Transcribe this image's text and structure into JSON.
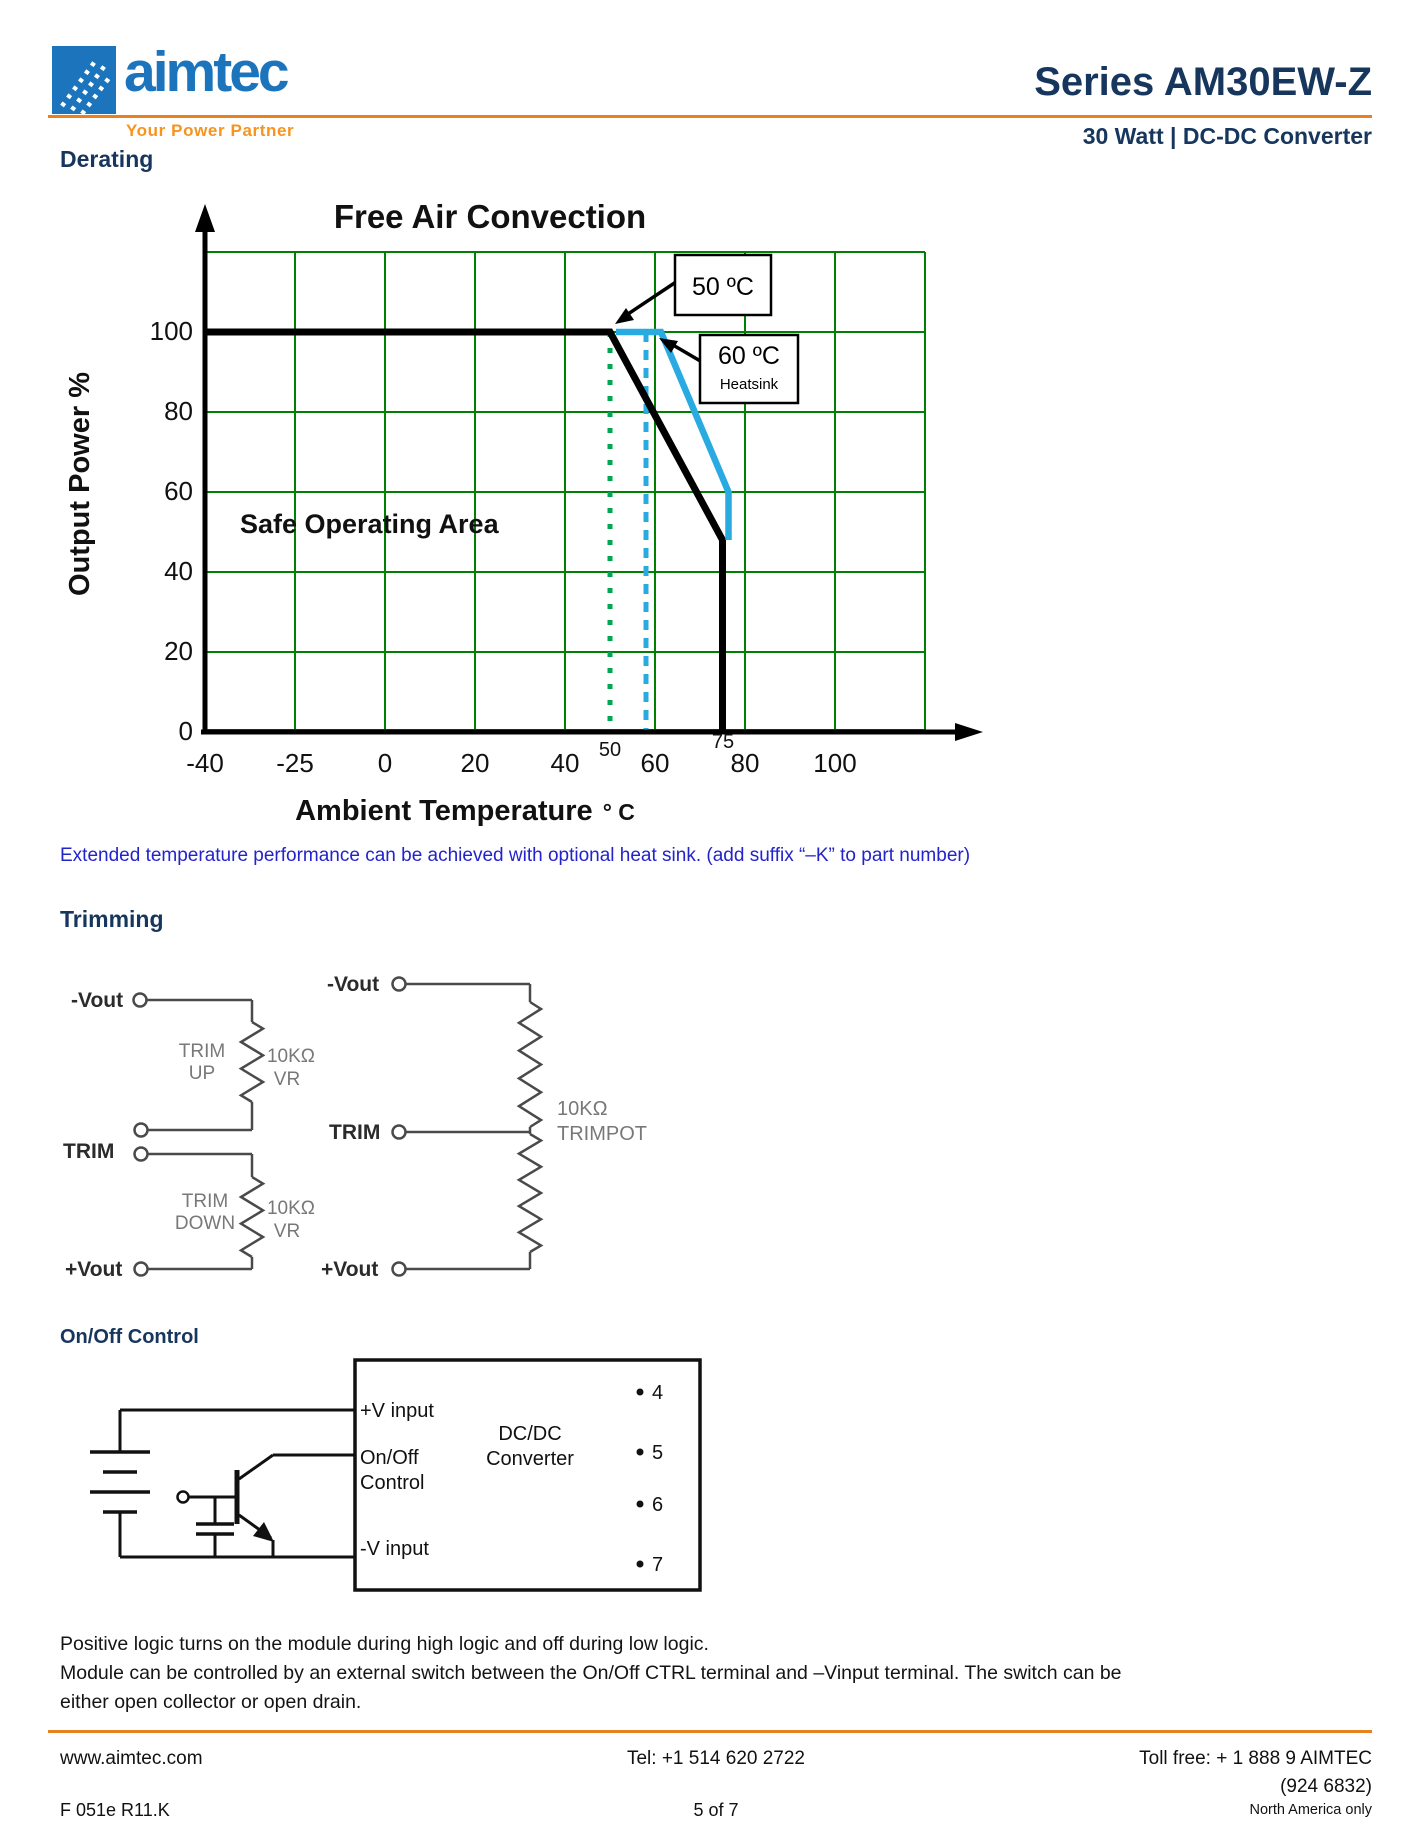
{
  "header": {
    "logo_text": "aimtec",
    "logo_tagline": "Your Power Partner",
    "series_title": "Series AM30EW-Z",
    "series_subtitle": "30 Watt | DC-DC Converter"
  },
  "derating": {
    "heading": "Derating",
    "note": "Extended temperature performance can be achieved with optional heat sink. (add suffix “–K” to part number)"
  },
  "chart_data": {
    "type": "line",
    "title": "Free Air Convection",
    "xlabel": "Ambient Temperature",
    "xlabel_unit": "° C",
    "ylabel": "Output Power %",
    "x_ticks": [
      "-40",
      "-25",
      "0",
      "20",
      "40",
      "60",
      "80",
      "100"
    ],
    "x_minor_ticks": [
      "50",
      "75"
    ],
    "y_ticks": [
      "100",
      "80",
      "60",
      "40",
      "20",
      "0"
    ],
    "ylim": [
      0,
      120
    ],
    "grid": true,
    "grid_color": "#008000",
    "legend_position": "none",
    "annotations": {
      "safe_area": "Safe Operating Area",
      "callout_50": "50 ºC",
      "callout_60": "60 ºC",
      "callout_60_sub": "Heatsink"
    },
    "series": [
      {
        "name": "free_air_convection",
        "color": "#000000",
        "points": [
          [
            -40,
            100
          ],
          [
            50,
            100
          ],
          [
            75,
            48
          ],
          [
            75,
            0
          ]
        ]
      },
      {
        "name": "with_60C_heatsink",
        "color": "#29ABE2",
        "points": [
          [
            50,
            100
          ],
          [
            60,
            100
          ],
          [
            75,
            60
          ],
          [
            75,
            48
          ]
        ]
      }
    ],
    "reference_lines": [
      {
        "x": 50,
        "style": "dotted",
        "color": "#00A651"
      },
      {
        "x": 58,
        "style": "dashed",
        "color": "#29ABE2"
      }
    ]
  },
  "trimming": {
    "heading": "Trimming",
    "dual_vr": {
      "neg_vout": "-Vout",
      "trim_up_l1": "TRIM",
      "trim_up_l2": "UP",
      "r1_value": "10KΩ",
      "r1_sub": "VR",
      "trim": "TRIM",
      "trim_down_l1": "TRIM",
      "trim_down_l2": "DOWN",
      "r2_value": "10KΩ",
      "r2_sub": "VR",
      "pos_vout": "+Vout"
    },
    "trimpot": {
      "neg_vout": "-Vout",
      "trim": "TRIM",
      "pos_vout": "+Vout",
      "value": "10KΩ",
      "value_sub": "TRIMPOT"
    }
  },
  "onoff": {
    "heading": "On/Off Control",
    "labels": {
      "pos_v": "+V input",
      "onoff_l1": "On/Off",
      "onoff_l2": "Control",
      "neg_v": "-V input",
      "box_l1": "DC/DC",
      "box_l2": "Converter"
    },
    "pins": [
      "4",
      "5",
      "6",
      "7"
    ]
  },
  "body": {
    "p1": "Positive logic turns on the module during high logic and off during low logic.",
    "p2a": "Module can be controlled by an external switch between the On/Off CTRL terminal and –Vinput terminal. The switch can be",
    "p2b": "either open collector or open drain."
  },
  "footer": {
    "website": "www.aimtec.com",
    "tel": "Tel: +1 514 620 2722",
    "tollfree": "Toll free: + 1 888 9 AIMTEC",
    "tollfree2": "(924 6832)",
    "doc_ref": "F 051e R11.K",
    "page": "5 of 7",
    "region": "North America only"
  }
}
